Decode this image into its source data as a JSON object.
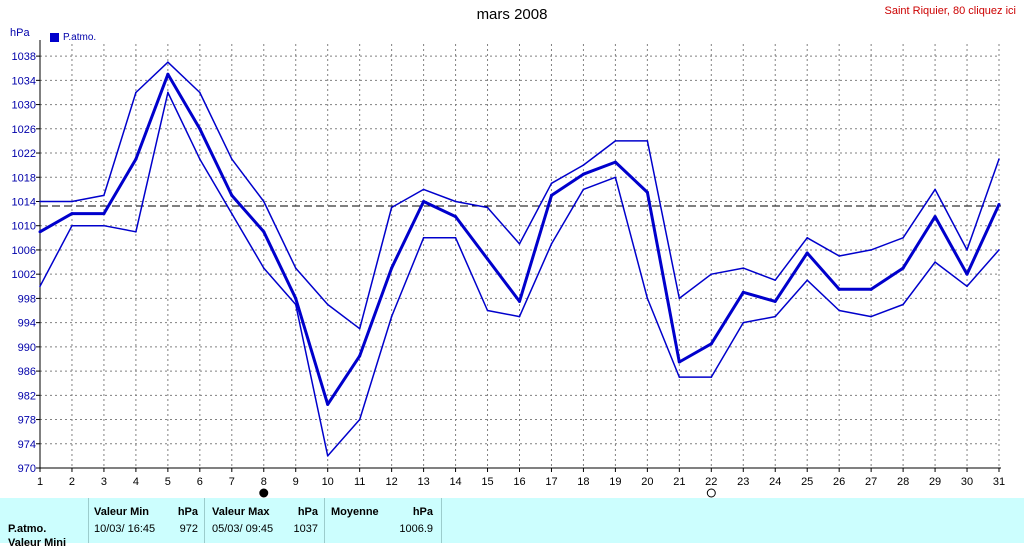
{
  "header": {
    "title": "mars 2008",
    "site_link": "Saint Riquier, 80 cliquez ici",
    "unit": "hPa",
    "legend_label": "P.atmo."
  },
  "colors": {
    "series": "#0000cc",
    "grid": "#808080",
    "axis_text": "#0000aa",
    "panel_bg": "#ccfefe",
    "accent": "#cc0000"
  },
  "icons": {
    "new_moon": "filled-circle-icon",
    "full_moon": "open-circle-icon"
  },
  "moon_markers": [
    {
      "day": 8,
      "kind": "filled"
    },
    {
      "day": 22,
      "kind": "open"
    }
  ],
  "chart_data": {
    "type": "line",
    "title": "mars 2008",
    "ylabel": "hPa",
    "x": [
      1,
      2,
      3,
      4,
      5,
      6,
      7,
      8,
      9,
      10,
      11,
      12,
      13,
      14,
      15,
      16,
      17,
      18,
      19,
      20,
      21,
      22,
      23,
      24,
      25,
      26,
      27,
      28,
      29,
      30,
      31
    ],
    "xlim": [
      1,
      31
    ],
    "ylim": [
      970,
      1040
    ],
    "yticks": [
      970,
      974,
      978,
      982,
      986,
      990,
      994,
      998,
      1002,
      1006,
      1010,
      1014,
      1018,
      1022,
      1026,
      1030,
      1034,
      1038
    ],
    "grid": true,
    "reference_line": 1013.25,
    "series": [
      {
        "name": "P.atmo.",
        "role": "max",
        "values": [
          1014,
          1014,
          1015,
          1032,
          1037,
          1032,
          1021,
          1014,
          1003,
          997,
          993,
          1013,
          1016,
          1014,
          1013,
          1007,
          1017,
          1020,
          1024,
          1024,
          998,
          1002,
          1003,
          1001,
          1008,
          1005,
          1006,
          1008,
          1016,
          1006,
          1021
        ]
      },
      {
        "name": "P.atmo.",
        "role": "mean",
        "values": [
          1009,
          1012,
          1012,
          1021,
          1035,
          1026,
          1015,
          1009,
          998,
          980.5,
          988.5,
          1003,
          1014,
          1011.5,
          1004.5,
          997.5,
          1015,
          1018.5,
          1020.5,
          1015.5,
          987.5,
          990.5,
          999,
          997.5,
          1005.5,
          999.5,
          999.5,
          1003,
          1011.5,
          1002,
          1013.5
        ]
      },
      {
        "name": "P.atmo.",
        "role": "min",
        "values": [
          1000,
          1010,
          1010,
          1009,
          1032,
          1021,
          1012,
          1003,
          997,
          972,
          978,
          995,
          1008,
          1008,
          996,
          995,
          1007,
          1016,
          1018,
          998,
          985,
          985,
          994,
          995,
          1001,
          996,
          995,
          997,
          1004,
          1000,
          1006
        ]
      }
    ]
  },
  "stats_panel": {
    "row_labels": [
      "P.atmo.",
      "Valeur Mini"
    ],
    "min": {
      "header": "Valeur Min",
      "unit": "hPa",
      "datetime": "10/03/  16:45",
      "value": "972"
    },
    "max": {
      "header": "Valeur Max",
      "unit": "hPa",
      "datetime": "05/03/  09:45",
      "value": "1037"
    },
    "avg": {
      "header": "Moyenne",
      "unit": "hPa",
      "value": "1006.9"
    }
  }
}
